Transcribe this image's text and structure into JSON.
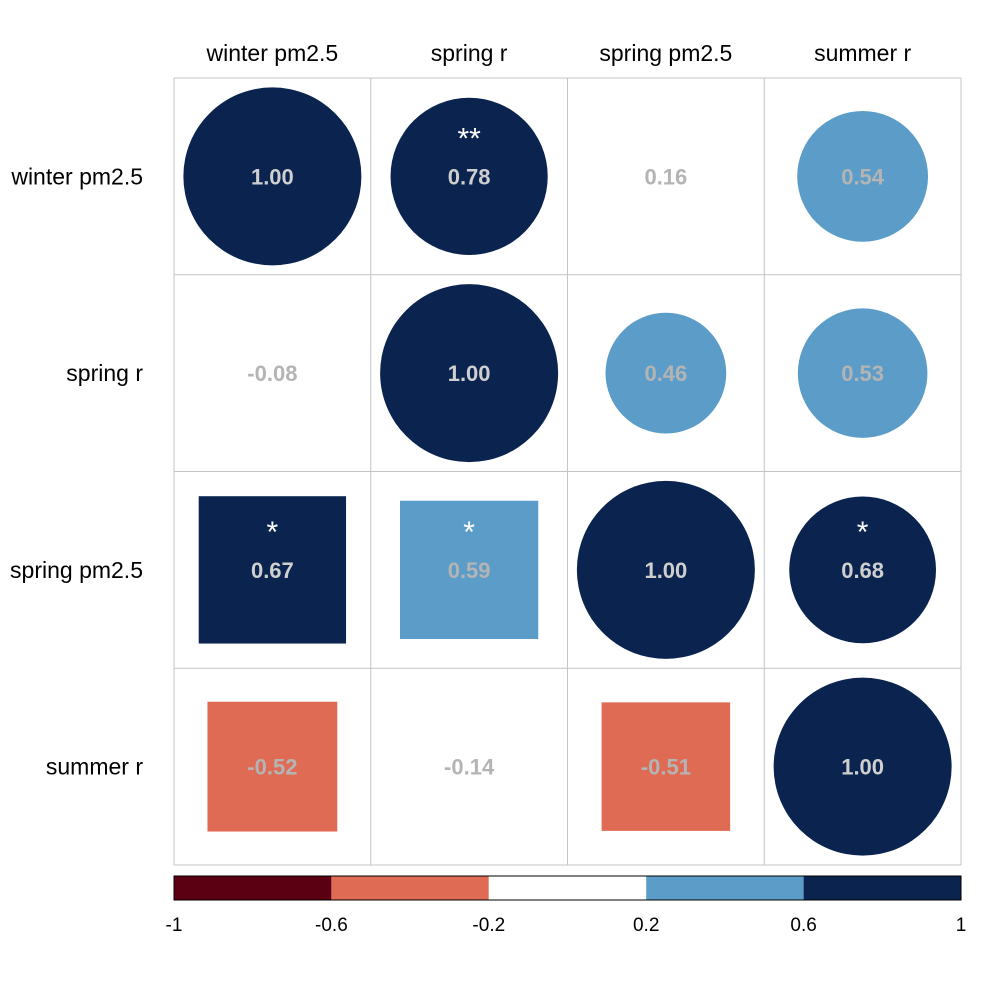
{
  "chart_data": {
    "type": "heatmap",
    "variables": [
      "winter pm2.5",
      "spring r",
      "spring pm2.5",
      "summer r"
    ],
    "upper_shape": "circle",
    "lower_shape": "square",
    "matrix": [
      [
        1.0,
        0.78,
        0.16,
        0.54
      ],
      [
        -0.08,
        1.0,
        0.46,
        0.53
      ],
      [
        0.67,
        0.59,
        1.0,
        0.68
      ],
      [
        -0.52,
        -0.14,
        -0.51,
        1.0
      ]
    ],
    "value_labels": [
      [
        "1.00",
        "0.78",
        "0.16",
        "0.54"
      ],
      [
        "-0.08",
        "1.00",
        "0.46",
        "0.53"
      ],
      [
        "0.67",
        "0.59",
        "1.00",
        "0.68"
      ],
      [
        "-0.52",
        "-0.14",
        "-0.51",
        "1.00"
      ]
    ],
    "significance": [
      [
        "",
        "**",
        "",
        ""
      ],
      [
        "",
        "",
        "",
        ""
      ],
      [
        "*",
        "*",
        "",
        "*"
      ],
      [
        "",
        "",
        "",
        ""
      ]
    ],
    "colorbar": {
      "breaks": [
        -1,
        -0.6,
        -0.2,
        0.2,
        0.6,
        1
      ],
      "tick_labels": [
        "-1",
        "-0.6",
        "-0.2",
        "0.2",
        "0.6",
        "1"
      ],
      "colors": [
        "#5a0012",
        "#e06b55",
        "#ffffff",
        "#5b9dc8",
        "#0b244f"
      ]
    },
    "text_color_strong": "#cfcfcf",
    "text_color_weak": "#b4b4b4",
    "grid": true,
    "legend_position": "bottom"
  }
}
